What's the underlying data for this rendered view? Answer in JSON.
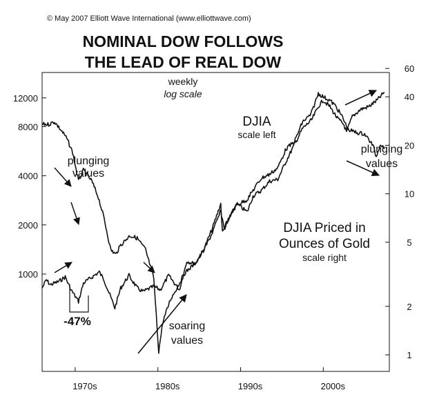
{
  "chart_data": {
    "type": "line",
    "copyright": "© May 2007 Elliott Wave International (www.elliottwave.com)",
    "title": [
      "NOMINAL DOW FOLLOWS",
      "THE LEAD OF REAL DOW"
    ],
    "subtitle": [
      "weekly",
      "log scale"
    ],
    "x_tick_labels": [
      "1970s",
      "1980s",
      "1990s",
      "2000s"
    ],
    "x_tick_years": [
      1970,
      1980,
      1990,
      2000
    ],
    "xlim": [
      1966,
      2008
    ],
    "left_axis": {
      "scale": "log",
      "ticks": [
        1000,
        2000,
        4000,
        8000,
        12000
      ],
      "labels": [
        "1000",
        "2000",
        "4000",
        "8000",
        "12000"
      ]
    },
    "right_axis": {
      "scale": "log",
      "ticks": [
        1,
        2,
        5,
        10,
        20,
        40,
        60
      ],
      "labels": [
        "1",
        "2",
        "5",
        "10",
        "20",
        "40",
        "60"
      ]
    },
    "series": [
      {
        "name": "DJIA",
        "axis": "left",
        "label": [
          "DJIA",
          "scale left"
        ],
        "x": [
          1966,
          1966.5,
          1967,
          1968,
          1968.8,
          1969.5,
          1970.4,
          1971,
          1972.9,
          1973.5,
          1974.8,
          1975.5,
          1976.5,
          1977.5,
          1978.2,
          1979.5,
          1980.3,
          1981.3,
          1982.6,
          1983.5,
          1984.5,
          1985.5,
          1986.5,
          1987.6,
          1987.8,
          1988.5,
          1989.5,
          1990.8,
          1991.5,
          1992.5,
          1993.5,
          1994.5,
          1995.5,
          1996.5,
          1997.5,
          1998.6,
          1999.5,
          2000.0,
          2000.8,
          2001.7,
          2002.5,
          2002.8,
          2003.5,
          2004.5,
          2005.5,
          2006.5,
          2007.4
        ],
        "y": [
          820,
          920,
          860,
          900,
          960,
          800,
          680,
          880,
          1030,
          920,
          620,
          820,
          980,
          820,
          780,
          840,
          800,
          980,
          800,
          1200,
          1150,
          1400,
          1850,
          2700,
          1800,
          2100,
          2700,
          2400,
          3000,
          3250,
          3700,
          3800,
          4900,
          6200,
          7800,
          8800,
          10800,
          11600,
          10600,
          9000,
          8200,
          7400,
          9200,
          10200,
          10600,
          11600,
          13000
        ]
      },
      {
        "name": "DJIA Priced in Ounces of Gold",
        "axis": "right",
        "label": [
          "DJIA Priced in",
          "Ounces of Gold",
          "scale right"
        ],
        "x": [
          1966,
          1966.8,
          1967.5,
          1968.5,
          1969.0,
          1969.7,
          1970.4,
          1971.0,
          1972.0,
          1972.8,
          1973.5,
          1974.3,
          1974.9,
          1975.5,
          1976.6,
          1977.5,
          1978.5,
          1979.5,
          1980.1,
          1980.6,
          1981.5,
          1982.3,
          1983.2,
          1984.5,
          1985.5,
          1986.5,
          1987.6,
          1988.0,
          1989.5,
          1990.8,
          1991.5,
          1992.5,
          1993.5,
          1994.5,
          1995.5,
          1996.5,
          1997.5,
          1998.5,
          1999.4,
          2000.0,
          2000.8,
          2001.5,
          2002.3,
          2003.0,
          2004.0,
          2005.0,
          2006.0,
          2006.4,
          2006.9,
          2007.4
        ],
        "y": [
          27,
          27,
          28,
          24,
          22,
          18,
          12,
          14,
          12,
          9.5,
          7,
          4.5,
          4.2,
          4.8,
          5.5,
          5.3,
          4.5,
          3.0,
          1.05,
          1.6,
          2.2,
          2.6,
          3.2,
          3.7,
          4.4,
          5.6,
          7.8,
          6.2,
          8.5,
          9.2,
          10.5,
          12.5,
          13.2,
          14.5,
          19,
          21,
          28,
          31,
          42,
          40,
          38,
          35,
          30,
          25,
          24,
          23.5,
          20,
          17,
          20.5,
          19
        ]
      }
    ],
    "annotations": [
      "plunging",
      "values",
      "soaring",
      "values",
      "plunging",
      "values",
      "-47%"
    ]
  }
}
